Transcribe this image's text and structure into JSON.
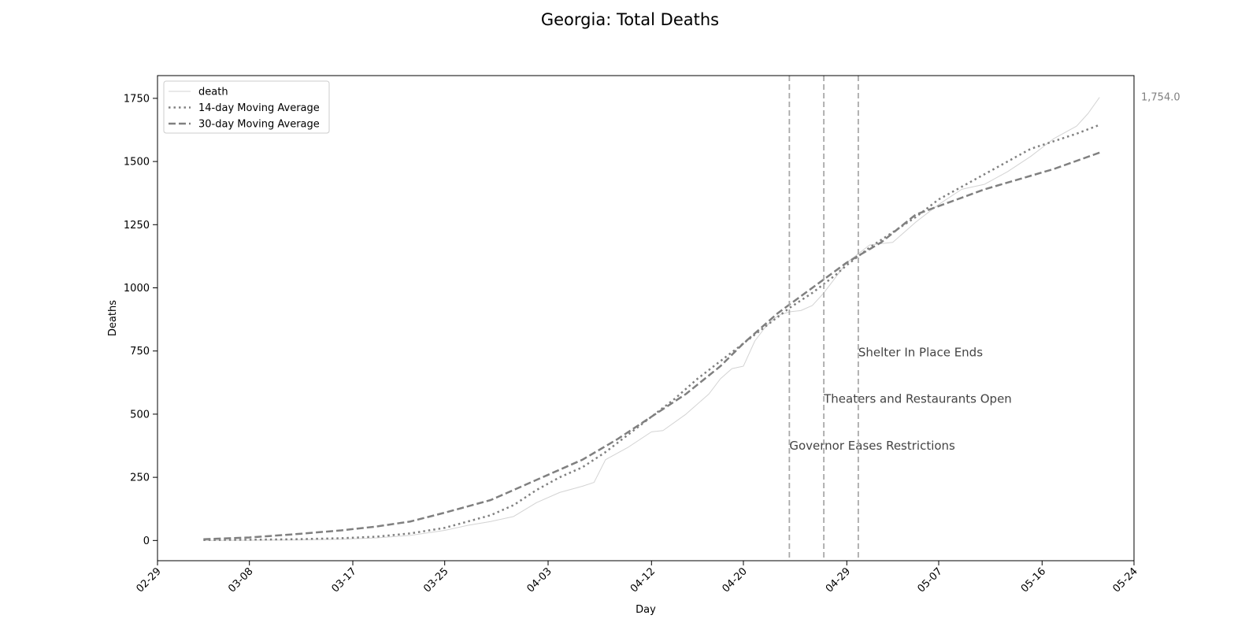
{
  "chart_data": {
    "type": "line",
    "title": "Georgia: Total Deaths",
    "xlabel": "Day",
    "ylabel": "Deaths",
    "x_range": [
      "2020-02-29",
      "2020-05-24"
    ],
    "ylim": [
      -80,
      1840
    ],
    "x_ticks": [
      "2020-02-29",
      "2020-03-08",
      "2020-03-17",
      "2020-03-25",
      "2020-04-03",
      "2020-04-12",
      "2020-04-20",
      "2020-04-29",
      "2020-05-07",
      "2020-05-16",
      "2020-05-24"
    ],
    "x_tick_labels": [
      "02-29",
      "03-08",
      "03-17",
      "03-25",
      "04-03",
      "04-12",
      "04-20",
      "04-29",
      "05-07",
      "05-16",
      "05-24"
    ],
    "y_ticks": [
      0,
      250,
      500,
      750,
      1000,
      1250,
      1500,
      1750
    ],
    "y_tick_labels": [
      "0",
      "250",
      "500",
      "750",
      "1000",
      "1250",
      "1500",
      "1750"
    ],
    "grid": false,
    "legend_position": "top-left",
    "last_value_label": "1,754.0",
    "series": [
      {
        "name": "death",
        "style": "solid-thin",
        "color": "#d3d3d3",
        "points": [
          [
            "2020-03-04",
            0
          ],
          [
            "2020-03-08",
            1
          ],
          [
            "2020-03-12",
            2
          ],
          [
            "2020-03-16",
            5
          ],
          [
            "2020-03-19",
            10
          ],
          [
            "2020-03-22",
            20
          ],
          [
            "2020-03-25",
            40
          ],
          [
            "2020-03-27",
            60
          ],
          [
            "2020-03-29",
            75
          ],
          [
            "2020-03-31",
            95
          ],
          [
            "2020-04-02",
            150
          ],
          [
            "2020-04-04",
            190
          ],
          [
            "2020-04-06",
            215
          ],
          [
            "2020-04-07",
            230
          ],
          [
            "2020-04-08",
            320
          ],
          [
            "2020-04-10",
            370
          ],
          [
            "2020-04-12",
            430
          ],
          [
            "2020-04-13",
            435
          ],
          [
            "2020-04-15",
            500
          ],
          [
            "2020-04-17",
            580
          ],
          [
            "2020-04-18",
            640
          ],
          [
            "2020-04-19",
            680
          ],
          [
            "2020-04-20",
            690
          ],
          [
            "2020-04-21",
            790
          ],
          [
            "2020-04-22",
            850
          ],
          [
            "2020-04-23",
            890
          ],
          [
            "2020-04-24",
            905
          ],
          [
            "2020-04-25",
            910
          ],
          [
            "2020-04-26",
            930
          ],
          [
            "2020-04-27",
            980
          ],
          [
            "2020-04-28",
            1040
          ],
          [
            "2020-04-29",
            1100
          ],
          [
            "2020-05-01",
            1170
          ],
          [
            "2020-05-03",
            1180
          ],
          [
            "2020-05-05",
            1260
          ],
          [
            "2020-05-07",
            1330
          ],
          [
            "2020-05-09",
            1390
          ],
          [
            "2020-05-11",
            1410
          ],
          [
            "2020-05-13",
            1460
          ],
          [
            "2020-05-15",
            1520
          ],
          [
            "2020-05-17",
            1590
          ],
          [
            "2020-05-19",
            1640
          ],
          [
            "2020-05-20",
            1690
          ],
          [
            "2020-05-21",
            1754
          ]
        ]
      },
      {
        "name": "14-day Moving Average",
        "style": "dotted",
        "color": "#808080",
        "points": [
          [
            "2020-03-04",
            2
          ],
          [
            "2020-03-08",
            3
          ],
          [
            "2020-03-12",
            5
          ],
          [
            "2020-03-16",
            9
          ],
          [
            "2020-03-19",
            15
          ],
          [
            "2020-03-22",
            28
          ],
          [
            "2020-03-25",
            50
          ],
          [
            "2020-03-27",
            75
          ],
          [
            "2020-03-29",
            100
          ],
          [
            "2020-03-31",
            140
          ],
          [
            "2020-04-02",
            200
          ],
          [
            "2020-04-04",
            250
          ],
          [
            "2020-04-06",
            290
          ],
          [
            "2020-04-08",
            350
          ],
          [
            "2020-04-10",
            420
          ],
          [
            "2020-04-12",
            490
          ],
          [
            "2020-04-14",
            560
          ],
          [
            "2020-04-16",
            640
          ],
          [
            "2020-04-18",
            710
          ],
          [
            "2020-04-20",
            780
          ],
          [
            "2020-04-22",
            850
          ],
          [
            "2020-04-24",
            920
          ],
          [
            "2020-04-26",
            980
          ],
          [
            "2020-04-28",
            1050
          ],
          [
            "2020-04-29",
            1090
          ],
          [
            "2020-05-01",
            1160
          ],
          [
            "2020-05-03",
            1220
          ],
          [
            "2020-05-05",
            1280
          ],
          [
            "2020-05-07",
            1350
          ],
          [
            "2020-05-09",
            1400
          ],
          [
            "2020-05-11",
            1450
          ],
          [
            "2020-05-13",
            1500
          ],
          [
            "2020-05-15",
            1550
          ],
          [
            "2020-05-17",
            1580
          ],
          [
            "2020-05-19",
            1610
          ],
          [
            "2020-05-21",
            1645
          ]
        ]
      },
      {
        "name": "30-day Moving Average",
        "style": "dashed",
        "color": "#808080",
        "points": [
          [
            "2020-03-04",
            5
          ],
          [
            "2020-03-08",
            12
          ],
          [
            "2020-03-12",
            25
          ],
          [
            "2020-03-16",
            40
          ],
          [
            "2020-03-19",
            55
          ],
          [
            "2020-03-22",
            75
          ],
          [
            "2020-03-25",
            110
          ],
          [
            "2020-03-27",
            135
          ],
          [
            "2020-03-29",
            160
          ],
          [
            "2020-03-31",
            200
          ],
          [
            "2020-04-03",
            260
          ],
          [
            "2020-04-06",
            320
          ],
          [
            "2020-04-09",
            400
          ],
          [
            "2020-04-12",
            490
          ],
          [
            "2020-04-15",
            580
          ],
          [
            "2020-04-18",
            690
          ],
          [
            "2020-04-20",
            780
          ],
          [
            "2020-04-23",
            900
          ],
          [
            "2020-04-26",
            1000
          ],
          [
            "2020-04-29",
            1100
          ],
          [
            "2020-05-02",
            1180
          ],
          [
            "2020-05-05",
            1290
          ],
          [
            "2020-05-08",
            1340
          ],
          [
            "2020-05-11",
            1390
          ],
          [
            "2020-05-14",
            1430
          ],
          [
            "2020-05-17",
            1470
          ],
          [
            "2020-05-21",
            1535
          ]
        ]
      }
    ],
    "events": [
      {
        "date": "2020-04-24",
        "label": "Governor Eases Restrictions",
        "label_y": 375
      },
      {
        "date": "2020-04-27",
        "label": "Theaters and Restaurants Open",
        "label_y": 560
      },
      {
        "date": "2020-04-30",
        "label": "Shelter In Place Ends",
        "label_y": 745
      }
    ]
  }
}
